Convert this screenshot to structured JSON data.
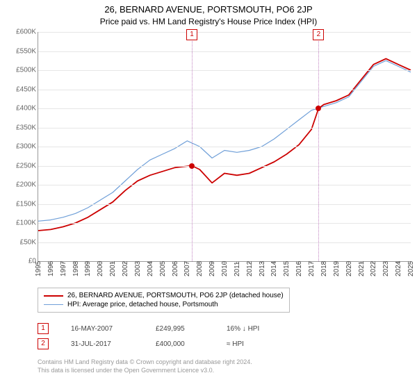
{
  "title": "26, BERNARD AVENUE, PORTSMOUTH, PO6 2JP",
  "subtitle": "Price paid vs. HM Land Registry's House Price Index (HPI)",
  "chart": {
    "type": "line",
    "background_color": "#ffffff",
    "grid_color": "#e6e6e6",
    "axis_color": "#999999",
    "y": {
      "min": 0,
      "max": 600000,
      "step": 50000,
      "ticks": [
        "£0",
        "£50K",
        "£100K",
        "£150K",
        "£200K",
        "£250K",
        "£300K",
        "£350K",
        "£400K",
        "£450K",
        "£500K",
        "£550K",
        "£600K"
      ]
    },
    "x": {
      "min": 1995,
      "max": 2025,
      "ticks": [
        1995,
        1996,
        1997,
        1998,
        1999,
        2000,
        2001,
        2002,
        2003,
        2004,
        2005,
        2006,
        2007,
        2008,
        2009,
        2010,
        2011,
        2012,
        2013,
        2014,
        2015,
        2016,
        2017,
        2018,
        2019,
        2020,
        2021,
        2022,
        2023,
        2024,
        2025
      ]
    },
    "series": [
      {
        "name": "HPI: Average price, detached house, Portsmouth",
        "color": "#6f9fd8",
        "width": 1.2,
        "data": [
          [
            1995,
            105000
          ],
          [
            1996,
            108000
          ],
          [
            1997,
            115000
          ],
          [
            1998,
            125000
          ],
          [
            1999,
            140000
          ],
          [
            2000,
            160000
          ],
          [
            2001,
            180000
          ],
          [
            2002,
            210000
          ],
          [
            2003,
            240000
          ],
          [
            2004,
            265000
          ],
          [
            2005,
            280000
          ],
          [
            2006,
            295000
          ],
          [
            2007,
            315000
          ],
          [
            2008,
            300000
          ],
          [
            2009,
            270000
          ],
          [
            2010,
            290000
          ],
          [
            2011,
            285000
          ],
          [
            2012,
            290000
          ],
          [
            2013,
            300000
          ],
          [
            2014,
            320000
          ],
          [
            2015,
            345000
          ],
          [
            2016,
            370000
          ],
          [
            2017,
            395000
          ],
          [
            2018,
            405000
          ],
          [
            2019,
            415000
          ],
          [
            2020,
            430000
          ],
          [
            2021,
            470000
          ],
          [
            2022,
            510000
          ],
          [
            2023,
            525000
          ],
          [
            2024,
            510000
          ],
          [
            2025,
            495000
          ]
        ]
      },
      {
        "name": "26, BERNARD AVENUE, PORTSMOUTH, PO6 2JP (detached house)",
        "color": "#cc0000",
        "width": 1.8,
        "data": [
          [
            1995,
            80000
          ],
          [
            1996,
            83000
          ],
          [
            1997,
            90000
          ],
          [
            1998,
            100000
          ],
          [
            1999,
            115000
          ],
          [
            2000,
            135000
          ],
          [
            2001,
            155000
          ],
          [
            2002,
            185000
          ],
          [
            2003,
            210000
          ],
          [
            2004,
            225000
          ],
          [
            2005,
            235000
          ],
          [
            2006,
            245000
          ],
          [
            2007.37,
            249995
          ],
          [
            2008,
            240000
          ],
          [
            2009,
            205000
          ],
          [
            2010,
            230000
          ],
          [
            2011,
            225000
          ],
          [
            2012,
            230000
          ],
          [
            2013,
            245000
          ],
          [
            2014,
            260000
          ],
          [
            2015,
            280000
          ],
          [
            2016,
            305000
          ],
          [
            2017,
            345000
          ],
          [
            2017.58,
            400000
          ],
          [
            2018,
            410000
          ],
          [
            2019,
            420000
          ],
          [
            2020,
            435000
          ],
          [
            2021,
            475000
          ],
          [
            2022,
            515000
          ],
          [
            2023,
            530000
          ],
          [
            2024,
            515000
          ],
          [
            2025,
            500000
          ]
        ]
      }
    ],
    "markers": [
      {
        "idx": "1",
        "year": 2007.37,
        "label_color": "#cc0000",
        "line_color": "#c080c0"
      },
      {
        "idx": "2",
        "year": 2017.58,
        "label_color": "#cc0000",
        "line_color": "#c080c0"
      }
    ],
    "dots": [
      {
        "year": 2007.37,
        "value": 249995,
        "color": "#cc0000"
      },
      {
        "year": 2017.58,
        "value": 400000,
        "color": "#cc0000"
      }
    ]
  },
  "legend": [
    {
      "color": "#cc0000",
      "width": 2,
      "label": "26, BERNARD AVENUE, PORTSMOUTH, PO6 2JP (detached house)"
    },
    {
      "color": "#6f9fd8",
      "width": 1,
      "label": "HPI: Average price, detached house, Portsmouth"
    }
  ],
  "sales": [
    {
      "idx": "1",
      "date": "16-MAY-2007",
      "price": "£249,995",
      "delta": "16% ↓ HPI"
    },
    {
      "idx": "2",
      "date": "31-JUL-2017",
      "price": "£400,000",
      "delta": "≈ HPI"
    }
  ],
  "attribution": {
    "l1": "Contains HM Land Registry data © Crown copyright and database right 2024.",
    "l2": "This data is licensed under the Open Government Licence v3.0."
  }
}
